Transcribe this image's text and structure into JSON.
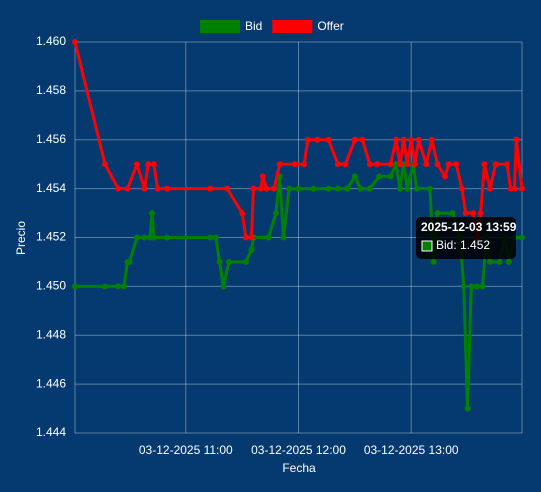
{
  "chart_data": {
    "type": "line",
    "x_label": "Fecha",
    "y_label": "Precio",
    "xlim": [
      "2025-12-03 10:01",
      "2025-12-03 13:59"
    ],
    "xticks": [
      {
        "value": "2025-12-03 11:00",
        "label": "03-12-2025 11:00"
      },
      {
        "value": "2025-12-03 12:00",
        "label": "03-12-2025 12:00"
      },
      {
        "value": "2025-12-03 13:00",
        "label": "03-12-2025 13:00"
      }
    ],
    "ylim": [
      1.444,
      1.46
    ],
    "yticks": [
      1.444,
      1.446,
      1.448,
      {
        "value": 1.45,
        "label": "1.450"
      },
      1.452,
      1.454,
      1.456,
      1.458,
      {
        "value": 1.46,
        "label": "1.460"
      }
    ],
    "grid": true,
    "legend": "top",
    "series": [
      {
        "name": "Bid",
        "color": "#008000",
        "x": [
          "2025-12-03 10:01",
          "2025-12-03 10:17",
          "2025-12-03 10:24",
          "2025-12-03 10:27",
          "2025-12-03 10:29",
          "2025-12-03 10:30",
          "2025-12-03 10:34",
          "2025-12-03 10:38",
          "2025-12-03 10:41",
          "2025-12-03 10:42",
          "2025-12-03 10:43",
          "2025-12-03 10:50",
          "2025-12-03 11:13",
          "2025-12-03 11:16",
          "2025-12-03 11:18",
          "2025-12-03 11:20",
          "2025-12-03 11:23",
          "2025-12-03 11:32",
          "2025-12-03 11:35",
          "2025-12-03 11:36",
          "2025-12-03 11:44",
          "2025-12-03 11:48",
          "2025-12-03 11:50",
          "2025-12-03 11:52",
          "2025-12-03 11:55",
          "2025-12-03 12:00",
          "2025-12-03 12:08",
          "2025-12-03 12:16",
          "2025-12-03 12:21",
          "2025-12-03 12:26",
          "2025-12-03 12:30",
          "2025-12-03 12:33",
          "2025-12-03 12:38",
          "2025-12-03 12:43",
          "2025-12-03 12:49",
          "2025-12-03 12:52",
          "2025-12-03 12:54",
          "2025-12-03 12:56",
          "2025-12-03 12:58",
          "2025-12-03 13:01",
          "2025-12-03 13:03",
          "2025-12-03 13:10",
          "2025-12-03 13:12",
          "2025-12-03 13:14",
          "2025-12-03 13:22",
          "2025-12-03 13:26",
          "2025-12-03 13:28",
          "2025-12-03 13:30",
          "2025-12-03 13:32",
          "2025-12-03 13:35",
          "2025-12-03 13:38",
          "2025-12-03 13:40",
          "2025-12-03 13:42",
          "2025-12-03 13:47",
          "2025-12-03 13:50",
          "2025-12-03 13:52",
          "2025-12-03 13:55",
          "2025-12-03 13:59"
        ],
        "values": [
          1.45,
          1.45,
          1.45,
          1.45,
          1.451,
          1.451,
          1.452,
          1.452,
          1.452,
          1.453,
          1.452,
          1.452,
          1.452,
          1.452,
          1.451,
          1.45,
          1.451,
          1.451,
          1.4515,
          1.452,
          1.452,
          1.453,
          1.4545,
          1.452,
          1.454,
          1.454,
          1.454,
          1.454,
          1.454,
          1.454,
          1.4545,
          1.454,
          1.454,
          1.4545,
          1.4545,
          1.455,
          1.454,
          1.455,
          1.454,
          1.455,
          1.454,
          1.454,
          1.451,
          1.453,
          1.453,
          1.452,
          1.45,
          1.445,
          1.45,
          1.45,
          1.45,
          1.452,
          1.451,
          1.451,
          1.452,
          1.451,
          1.452,
          1.452
        ]
      },
      {
        "name": "Offer",
        "color": "#ff0000",
        "x": [
          "2025-12-03 10:01",
          "2025-12-03 10:17",
          "2025-12-03 10:24",
          "2025-12-03 10:29",
          "2025-12-03 10:34",
          "2025-12-03 10:38",
          "2025-12-03 10:40",
          "2025-12-03 10:43",
          "2025-12-03 10:45",
          "2025-12-03 10:50",
          "2025-12-03 11:13",
          "2025-12-03 11:22",
          "2025-12-03 11:30",
          "2025-12-03 11:32",
          "2025-12-03 11:35",
          "2025-12-03 11:36",
          "2025-12-03 11:40",
          "2025-12-03 11:41",
          "2025-12-03 11:43",
          "2025-12-03 11:47",
          "2025-12-03 11:50",
          "2025-12-03 11:58",
          "2025-12-03 12:03",
          "2025-12-03 12:05",
          "2025-12-03 12:10",
          "2025-12-03 12:16",
          "2025-12-03 12:21",
          "2025-12-03 12:25",
          "2025-12-03 12:30",
          "2025-12-03 12:34",
          "2025-12-03 12:38",
          "2025-12-03 12:42",
          "2025-12-03 12:49",
          "2025-12-03 12:52",
          "2025-12-03 12:54",
          "2025-12-03 12:56",
          "2025-12-03 12:58",
          "2025-12-03 13:00",
          "2025-12-03 13:02",
          "2025-12-03 13:04",
          "2025-12-03 13:08",
          "2025-12-03 13:11",
          "2025-12-03 13:14",
          "2025-12-03 13:18",
          "2025-12-03 13:20",
          "2025-12-03 13:24",
          "2025-12-03 13:27",
          "2025-12-03 13:29",
          "2025-12-03 13:33",
          "2025-12-03 13:35",
          "2025-12-03 13:37",
          "2025-12-03 13:39",
          "2025-12-03 13:42",
          "2025-12-03 13:45",
          "2025-12-03 13:51",
          "2025-12-03 13:53",
          "2025-12-03 13:55",
          "2025-12-03 13:56",
          "2025-12-03 13:59"
        ],
        "values": [
          1.46,
          1.455,
          1.454,
          1.454,
          1.455,
          1.454,
          1.455,
          1.455,
          1.454,
          1.454,
          1.454,
          1.454,
          1.453,
          1.452,
          1.452,
          1.454,
          1.454,
          1.4545,
          1.454,
          1.454,
          1.455,
          1.455,
          1.455,
          1.456,
          1.456,
          1.456,
          1.455,
          1.455,
          1.456,
          1.456,
          1.455,
          1.455,
          1.455,
          1.456,
          1.455,
          1.456,
          1.455,
          1.456,
          1.455,
          1.456,
          1.455,
          1.456,
          1.455,
          1.4545,
          1.455,
          1.455,
          1.454,
          1.453,
          1.453,
          1.452,
          1.453,
          1.455,
          1.454,
          1.455,
          1.455,
          1.454,
          1.454,
          1.456,
          1.454
        ]
      }
    ],
    "tooltip": {
      "title": "2025-12-03 13:59",
      "label": "Bid: 1.452"
    }
  }
}
